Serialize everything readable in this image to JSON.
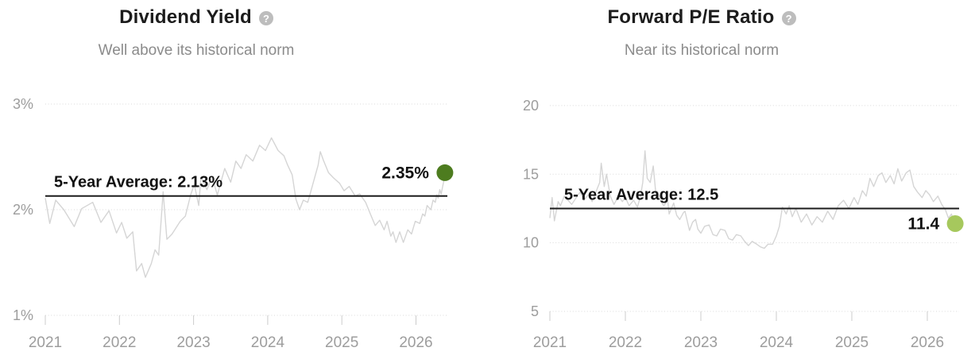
{
  "ui": {
    "help_glyph": "?"
  },
  "colors": {
    "background": "#ffffff",
    "title_text": "#1c1c1c",
    "subtitle_text": "#8b8b8b",
    "axis_text": "#9d9d9d",
    "grid": "#dadada",
    "tick": "#cccccc",
    "series_line": "#d5d5d5",
    "average_line": "#1b1b1b",
    "label_text": "#111111",
    "help_icon_bg": "#bdbdbd",
    "dot_left": "#4d7c1f",
    "dot_right": "#a6c85d"
  },
  "chart_data": [
    {
      "type": "line",
      "title": "Dividend Yield",
      "subtitle": "Well above its historical norm",
      "unit": "percent",
      "xlim": [
        2021,
        2026.42
      ],
      "ylim": [
        1,
        3
      ],
      "grid": "horizontal-dotted",
      "legend": "none",
      "x_ticks": [
        {
          "label": "2021",
          "value": 2021
        },
        {
          "label": "2022",
          "value": 2022
        },
        {
          "label": "2023",
          "value": 2023
        },
        {
          "label": "2024",
          "value": 2024
        },
        {
          "label": "2025",
          "value": 2025
        },
        {
          "label": "2026",
          "value": 2026
        }
      ],
      "y_ticks": [
        {
          "label": "3%",
          "value": 3
        },
        {
          "label": "2%",
          "value": 2
        },
        {
          "label": "1%",
          "value": 1
        }
      ],
      "average_line": {
        "label": "5-Year Average: 2.13%",
        "value": 2.13
      },
      "current_point": {
        "label": "2.35%",
        "value": 2.35,
        "color": "#4d7c1f"
      },
      "series": [
        {
          "name": "Dividend Yield",
          "color": "#d5d5d5",
          "x": [
            2021.0,
            2021.06,
            2021.14,
            2021.25,
            2021.39,
            2021.49,
            2021.64,
            2021.75,
            2021.86,
            2021.96,
            2022.03,
            2022.1,
            2022.18,
            2022.23,
            2022.3,
            2022.35,
            2022.43,
            2022.48,
            2022.53,
            2022.59,
            2022.64,
            2022.71,
            2022.82,
            2022.89,
            2022.96,
            2023.01,
            2023.07,
            2023.1,
            2023.18,
            2023.25,
            2023.32,
            2023.42,
            2023.5,
            2023.57,
            2023.64,
            2023.71,
            2023.8,
            2023.89,
            2023.97,
            2024.05,
            2024.14,
            2024.22,
            2024.27,
            2024.33,
            2024.38,
            2024.43,
            2024.48,
            2024.54,
            2024.6,
            2024.68,
            2024.71,
            2024.75,
            2024.82,
            2024.89,
            2024.97,
            2025.03,
            2025.1,
            2025.18,
            2025.24,
            2025.32,
            2025.39,
            2025.45,
            2025.51,
            2025.57,
            2025.61,
            2025.66,
            2025.69,
            2025.73,
            2025.78,
            2025.83,
            2025.89,
            2025.94,
            2025.99,
            2026.05,
            2026.09,
            2026.12,
            2026.15,
            2026.2,
            2026.23,
            2026.26,
            2026.28,
            2026.3,
            2026.32,
            2026.34,
            2026.36,
            2026.38,
            2026.39
          ],
          "y": [
            2.11,
            1.87,
            2.09,
            2.0,
            1.84,
            2.01,
            2.07,
            1.88,
            1.99,
            1.78,
            1.88,
            1.73,
            1.79,
            1.42,
            1.49,
            1.36,
            1.49,
            1.62,
            1.57,
            2.17,
            1.72,
            1.77,
            1.89,
            1.94,
            2.14,
            2.24,
            2.04,
            2.31,
            2.19,
            2.31,
            2.14,
            2.39,
            2.26,
            2.46,
            2.39,
            2.52,
            2.46,
            2.61,
            2.56,
            2.68,
            2.56,
            2.51,
            2.42,
            2.33,
            2.1,
            2.0,
            2.09,
            2.07,
            2.22,
            2.42,
            2.55,
            2.47,
            2.35,
            2.3,
            2.25,
            2.18,
            2.22,
            2.13,
            2.15,
            2.07,
            1.95,
            1.85,
            1.9,
            1.81,
            1.89,
            1.75,
            1.79,
            1.69,
            1.79,
            1.69,
            1.81,
            1.77,
            1.89,
            1.87,
            1.96,
            1.94,
            2.04,
            2.0,
            2.09,
            2.07,
            2.14,
            2.11,
            2.19,
            2.15,
            2.22,
            2.29,
            2.35
          ]
        }
      ]
    },
    {
      "type": "line",
      "title": "Forward P/E Ratio",
      "subtitle": "Near its historical norm",
      "unit": "ratio",
      "xlim": [
        2021,
        2026.42
      ],
      "ylim": [
        5,
        20
      ],
      "grid": "horizontal-dotted",
      "legend": "none",
      "x_ticks": [
        {
          "label": "2021",
          "value": 2021
        },
        {
          "label": "2022",
          "value": 2022
        },
        {
          "label": "2023",
          "value": 2023
        },
        {
          "label": "2024",
          "value": 2024
        },
        {
          "label": "2025",
          "value": 2025
        },
        {
          "label": "2026",
          "value": 2026
        }
      ],
      "y_ticks": [
        {
          "label": "20",
          "value": 20
        },
        {
          "label": "15",
          "value": 15
        },
        {
          "label": "10",
          "value": 10
        },
        {
          "label": "5",
          "value": 5
        }
      ],
      "average_line": {
        "label": "5-Year Average: 12.5",
        "value": 12.5
      },
      "current_point": {
        "label": "11.4",
        "value": 11.4,
        "color": "#a6c85d"
      },
      "series": [
        {
          "name": "Forward P/E Ratio",
          "color": "#d5d5d5",
          "x": [
            2021.0,
            2021.03,
            2021.06,
            2021.11,
            2021.14,
            2021.19,
            2021.24,
            2021.29,
            2021.35,
            2021.4,
            2021.45,
            2021.51,
            2021.56,
            2021.61,
            2021.66,
            2021.68,
            2021.72,
            2021.75,
            2021.8,
            2021.85,
            2021.91,
            2021.96,
            2022.0,
            2022.05,
            2022.11,
            2022.16,
            2022.2,
            2022.23,
            2022.26,
            2022.29,
            2022.33,
            2022.37,
            2022.4,
            2022.43,
            2022.47,
            2022.51,
            2022.56,
            2022.58,
            2022.64,
            2022.68,
            2022.72,
            2022.77,
            2022.79,
            2022.85,
            2022.89,
            2022.93,
            2022.96,
            2023.0,
            2023.05,
            2023.11,
            2023.16,
            2023.21,
            2023.26,
            2023.32,
            2023.37,
            2023.42,
            2023.47,
            2023.53,
            2023.58,
            2023.63,
            2023.68,
            2023.74,
            2023.79,
            2023.84,
            2023.89,
            2023.95,
            2024.0,
            2024.04,
            2024.08,
            2024.13,
            2024.17,
            2024.21,
            2024.26,
            2024.33,
            2024.4,
            2024.47,
            2024.54,
            2024.61,
            2024.68,
            2024.75,
            2024.82,
            2024.89,
            2024.96,
            2025.03,
            2025.08,
            2025.14,
            2025.19,
            2025.24,
            2025.29,
            2025.35,
            2025.4,
            2025.45,
            2025.51,
            2025.56,
            2025.61,
            2025.66,
            2025.72,
            2025.77,
            2025.82,
            2025.87,
            2025.93,
            2025.98,
            2026.03,
            2026.08,
            2026.14,
            2026.19,
            2026.24,
            2026.28,
            2026.32,
            2026.35,
            2026.37
          ],
          "y": [
            11.8,
            13.3,
            11.6,
            13.0,
            12.7,
            13.4,
            13.1,
            12.8,
            13.3,
            13.7,
            13.1,
            13.5,
            13.0,
            13.7,
            14.4,
            15.8,
            14.1,
            15.0,
            13.4,
            12.8,
            13.4,
            13.0,
            13.3,
            12.7,
            13.1,
            12.6,
            13.4,
            14.4,
            16.7,
            14.7,
            14.4,
            15.6,
            13.8,
            13.7,
            13.0,
            12.7,
            13.1,
            12.1,
            12.9,
            12.0,
            11.7,
            12.2,
            12.3,
            10.9,
            11.5,
            11.7,
            11.0,
            10.7,
            11.2,
            11.3,
            10.6,
            10.5,
            11.0,
            10.9,
            10.3,
            10.2,
            10.6,
            10.5,
            10.1,
            9.8,
            10.1,
            9.9,
            9.7,
            9.6,
            9.9,
            9.9,
            10.5,
            11.2,
            12.6,
            12.1,
            12.7,
            11.9,
            12.5,
            11.5,
            12.1,
            11.3,
            11.9,
            11.5,
            12.3,
            11.7,
            12.7,
            13.1,
            12.5,
            13.3,
            12.8,
            13.8,
            13.4,
            14.7,
            14.1,
            14.9,
            15.1,
            14.4,
            14.9,
            14.3,
            15.4,
            14.5,
            15.1,
            15.3,
            14.1,
            13.7,
            13.3,
            13.8,
            13.5,
            13.0,
            13.4,
            12.8,
            12.4,
            11.8,
            12.1,
            11.5,
            11.4
          ]
        }
      ]
    }
  ]
}
